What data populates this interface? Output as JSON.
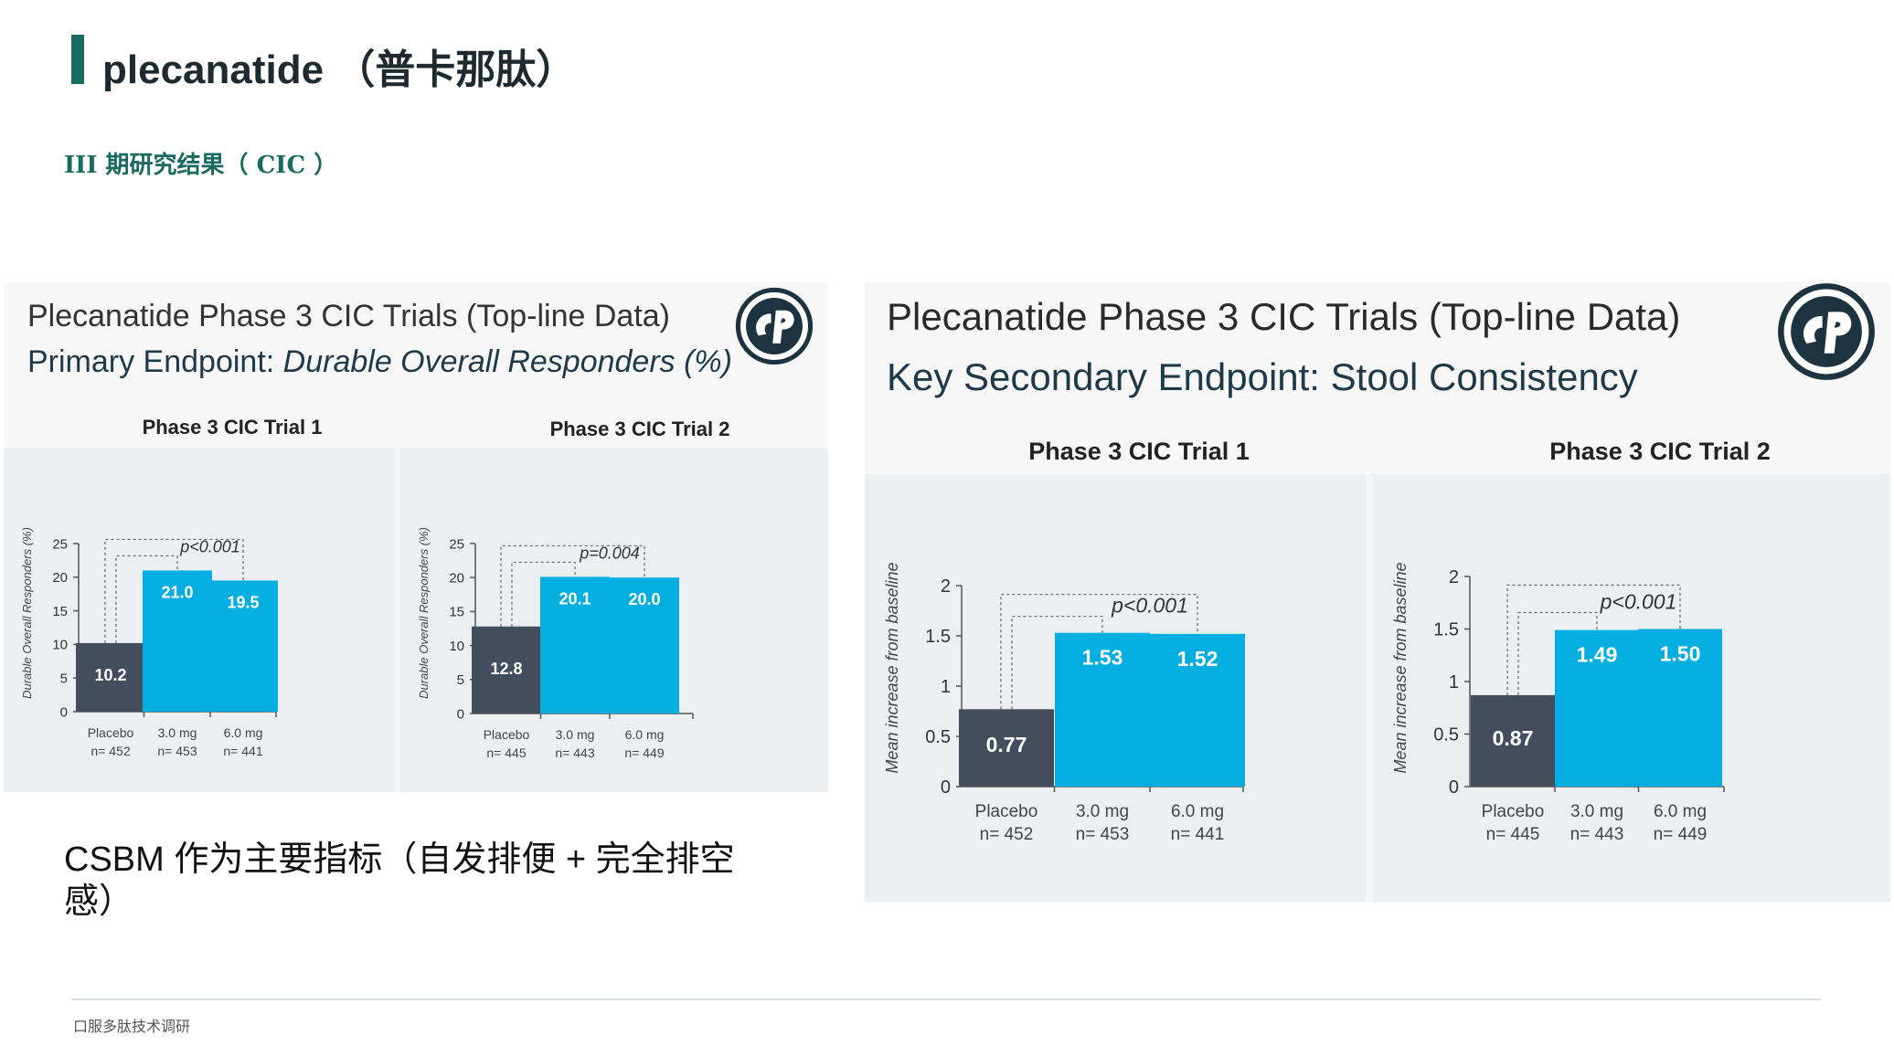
{
  "page": {
    "title": "plecanatide （普卡那肽）",
    "subtitle": "III 期研究结果（ CIC ）",
    "note": "CSBM 作为主要指标（自发排便 + 完全排空感）",
    "footer": "口服多肽技术调研"
  },
  "left_panel": {
    "title_line1": "Plecanatide Phase 3 CIC Trials (Top-line Data)",
    "title_line2_prefix": "Primary Endpoint: ",
    "title_line2_italic": "Durable Overall Responders (%)"
  },
  "right_panel": {
    "title_line1": "Plecanatide Phase 3 CIC Trials (Top-line Data)",
    "title_line2": "Key Secondary Endpoint: Stool Consistency"
  },
  "colors": {
    "placebo": "#434d5c",
    "drug": "#04aee0",
    "accent": "#1a6b5f"
  },
  "icons": [
    "synergy-logo-icon"
  ],
  "chart_data": [
    {
      "type": "bar",
      "title": "Phase 3 CIC Trial 1",
      "ylabel": "Durable Overall Responders (%)",
      "categories": [
        "Placebo",
        "3.0 mg",
        "6.0 mg"
      ],
      "n_labels": [
        "n= 452",
        "n= 453",
        "n= 441"
      ],
      "values": [
        10.2,
        21.0,
        19.5
      ],
      "value_labels": [
        "10.2",
        "21.0",
        "19.5"
      ],
      "ylim": [
        0,
        25
      ],
      "yticks": [
        "0",
        "5",
        "10",
        "15",
        "20",
        "25"
      ],
      "pvalue": "p<0.001"
    },
    {
      "type": "bar",
      "title": "Phase 3 CIC Trial 2",
      "ylabel": "Durable Overall Responders (%)",
      "categories": [
        "Placebo",
        "3.0 mg",
        "6.0 mg"
      ],
      "n_labels": [
        "n= 445",
        "n= 443",
        "n= 449"
      ],
      "values": [
        12.8,
        20.1,
        20.0
      ],
      "value_labels": [
        "12.8",
        "20.1",
        "20.0"
      ],
      "ylim": [
        0,
        25
      ],
      "yticks": [
        "0",
        "5",
        "10",
        "15",
        "20",
        "25"
      ],
      "pvalue": "p=0.004"
    },
    {
      "type": "bar",
      "title": "Phase 3 CIC Trial 1",
      "ylabel": "Mean increase from baseline",
      "categories": [
        "Placebo",
        "3.0 mg",
        "6.0 mg"
      ],
      "n_labels": [
        "n= 452",
        "n= 453",
        "n= 441"
      ],
      "values": [
        0.77,
        1.53,
        1.52
      ],
      "value_labels": [
        "0.77",
        "1.53",
        "1.52"
      ],
      "ylim": [
        0,
        2
      ],
      "yticks": [
        "0",
        "0.5",
        "1",
        "1.5",
        "2"
      ],
      "pvalue": "p<0.001"
    },
    {
      "type": "bar",
      "title": "Phase 3 CIC Trial 2",
      "ylabel": "Mean increase from baseline",
      "categories": [
        "Placebo",
        "3.0 mg",
        "6.0 mg"
      ],
      "n_labels": [
        "n= 445",
        "n= 443",
        "n= 449"
      ],
      "values": [
        0.87,
        1.49,
        1.5
      ],
      "value_labels": [
        "0.87",
        "1.49",
        "1.50"
      ],
      "ylim": [
        0,
        2
      ],
      "yticks": [
        "0",
        "0.5",
        "1",
        "1.5",
        "2"
      ],
      "pvalue": "p<0.001"
    }
  ]
}
